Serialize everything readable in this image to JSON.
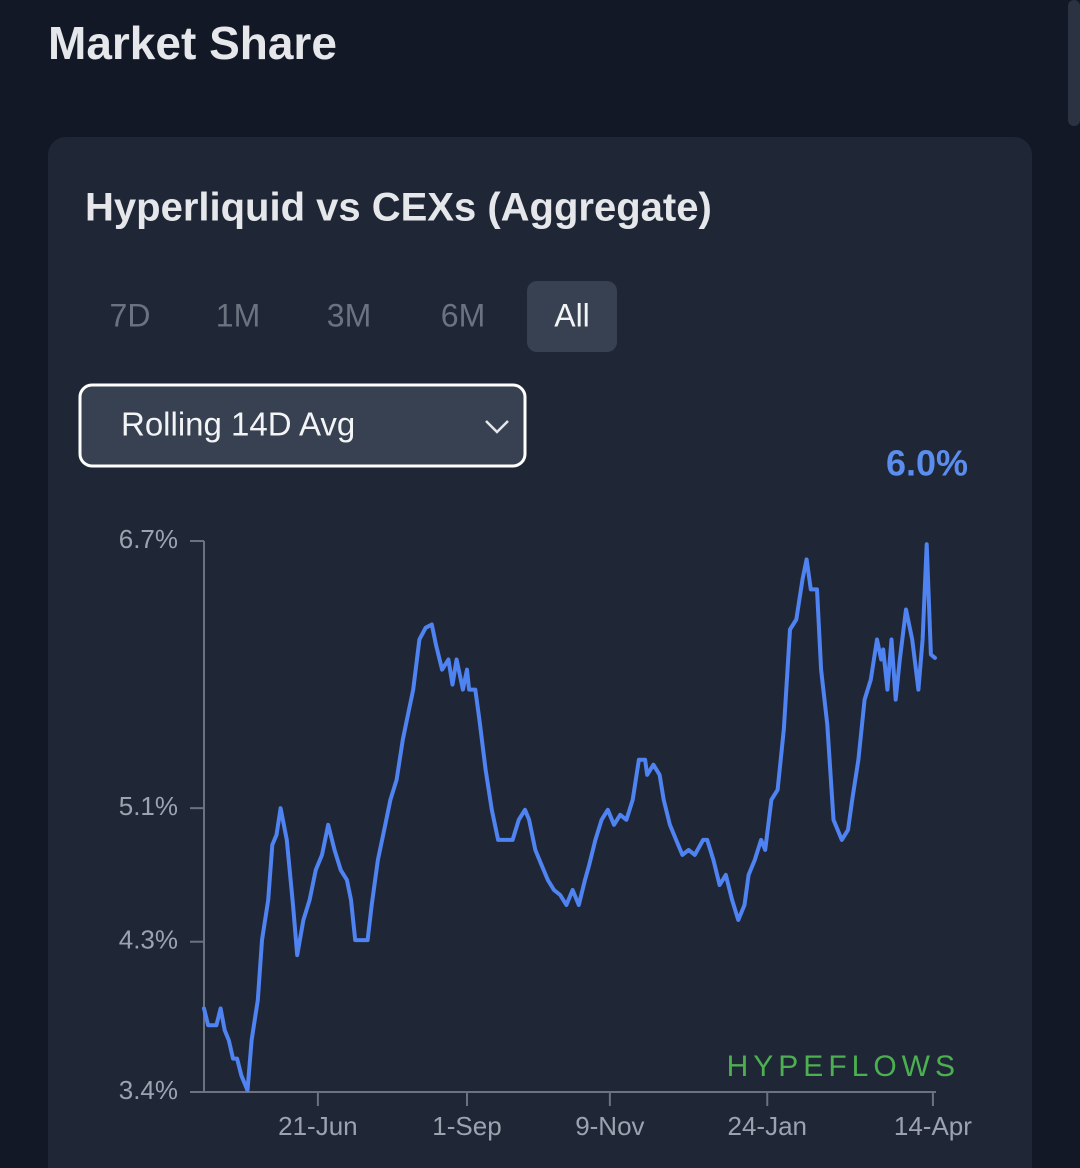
{
  "page": {
    "heading": "Market Share",
    "tabs": [
      "7D",
      "1M",
      "3M",
      "6M",
      "All"
    ],
    "active_tab": 4,
    "dropdown": "Rolling 14D Avg"
  },
  "chart_data": {
    "type": "line",
    "title": "Hyperliquid vs CEXs (Aggregate)",
    "annotation": "6.0%",
    "watermark": "HYPEFLOWS",
    "color": "#4f83f1",
    "xlim": [
      0,
      353
    ],
    "xticks": [
      {
        "value": 55,
        "label": "21-Jun"
      },
      {
        "value": 127,
        "label": "1-Sep"
      },
      {
        "value": 196,
        "label": "9-Nov"
      },
      {
        "value": 272,
        "label": "24-Jan"
      },
      {
        "value": 352,
        "label": "14-Apr"
      }
    ],
    "ylim": [
      3.4,
      6.7
    ],
    "yticks": [
      {
        "value": 3.4,
        "label": "3.4%"
      },
      {
        "value": 4.3,
        "label": "4.3%"
      },
      {
        "value": 5.1,
        "label": "5.1%"
      },
      {
        "value": 6.7,
        "label": "6.7%"
      }
    ],
    "x": [
      0,
      2,
      6,
      8,
      10,
      12,
      14,
      16,
      18,
      21,
      23,
      26,
      28,
      31,
      33,
      35,
      37,
      40,
      43,
      45,
      48,
      51,
      54,
      57,
      60,
      63,
      66,
      69,
      71,
      73,
      79,
      81,
      84,
      87,
      90,
      93,
      96,
      99,
      101,
      104,
      107,
      110,
      112,
      115,
      118,
      120,
      122,
      125,
      127,
      128,
      131,
      133,
      136,
      139,
      142,
      149,
      152,
      155,
      157,
      160,
      163,
      166,
      169,
      172,
      175,
      178,
      181,
      184,
      186,
      189,
      192,
      195,
      198,
      201,
      204,
      207,
      210,
      213,
      214,
      217,
      220,
      222,
      225,
      228,
      231,
      234,
      237,
      241,
      243,
      246,
      249,
      252,
      255,
      258,
      261,
      263,
      266,
      269,
      271,
      274,
      277,
      280,
      283,
      286,
      289,
      291,
      293,
      296,
      298,
      301,
      304,
      308,
      311,
      313,
      316,
      319,
      322,
      325,
      327,
      328,
      330,
      332,
      334,
      336,
      339,
      342,
      345,
      347,
      349,
      351,
      353
    ],
    "values": [
      3.9,
      3.8,
      3.8,
      3.9,
      3.77,
      3.71,
      3.6,
      3.6,
      3.5,
      3.41,
      3.71,
      3.95,
      4.31,
      4.55,
      4.88,
      4.94,
      5.1,
      4.91,
      4.52,
      4.22,
      4.43,
      4.55,
      4.73,
      4.82,
      5.0,
      4.85,
      4.73,
      4.67,
      4.55,
      4.31,
      4.31,
      4.52,
      4.79,
      4.97,
      5.15,
      5.27,
      5.51,
      5.69,
      5.81,
      6.11,
      6.18,
      6.2,
      6.08,
      5.93,
      5.99,
      5.84,
      5.99,
      5.81,
      5.93,
      5.81,
      5.81,
      5.63,
      5.33,
      5.09,
      4.91,
      4.91,
      5.03,
      5.09,
      5.03,
      4.85,
      4.76,
      4.67,
      4.61,
      4.58,
      4.52,
      4.61,
      4.52,
      4.67,
      4.76,
      4.91,
      5.03,
      5.09,
      5.0,
      5.06,
      5.03,
      5.15,
      5.39,
      5.39,
      5.3,
      5.36,
      5.3,
      5.15,
      5.0,
      4.91,
      4.82,
      4.85,
      4.82,
      4.91,
      4.91,
      4.79,
      4.64,
      4.7,
      4.55,
      4.43,
      4.52,
      4.7,
      4.79,
      4.91,
      4.85,
      5.15,
      5.21,
      5.57,
      6.17,
      6.23,
      6.47,
      6.59,
      6.41,
      6.41,
      5.93,
      5.6,
      5.03,
      4.91,
      4.97,
      5.15,
      5.39,
      5.75,
      5.87,
      6.11,
      5.99,
      6.05,
      5.81,
      6.11,
      5.75,
      5.99,
      6.29,
      6.11,
      5.81,
      6.11,
      6.68,
      6.02,
      6.0
    ]
  }
}
